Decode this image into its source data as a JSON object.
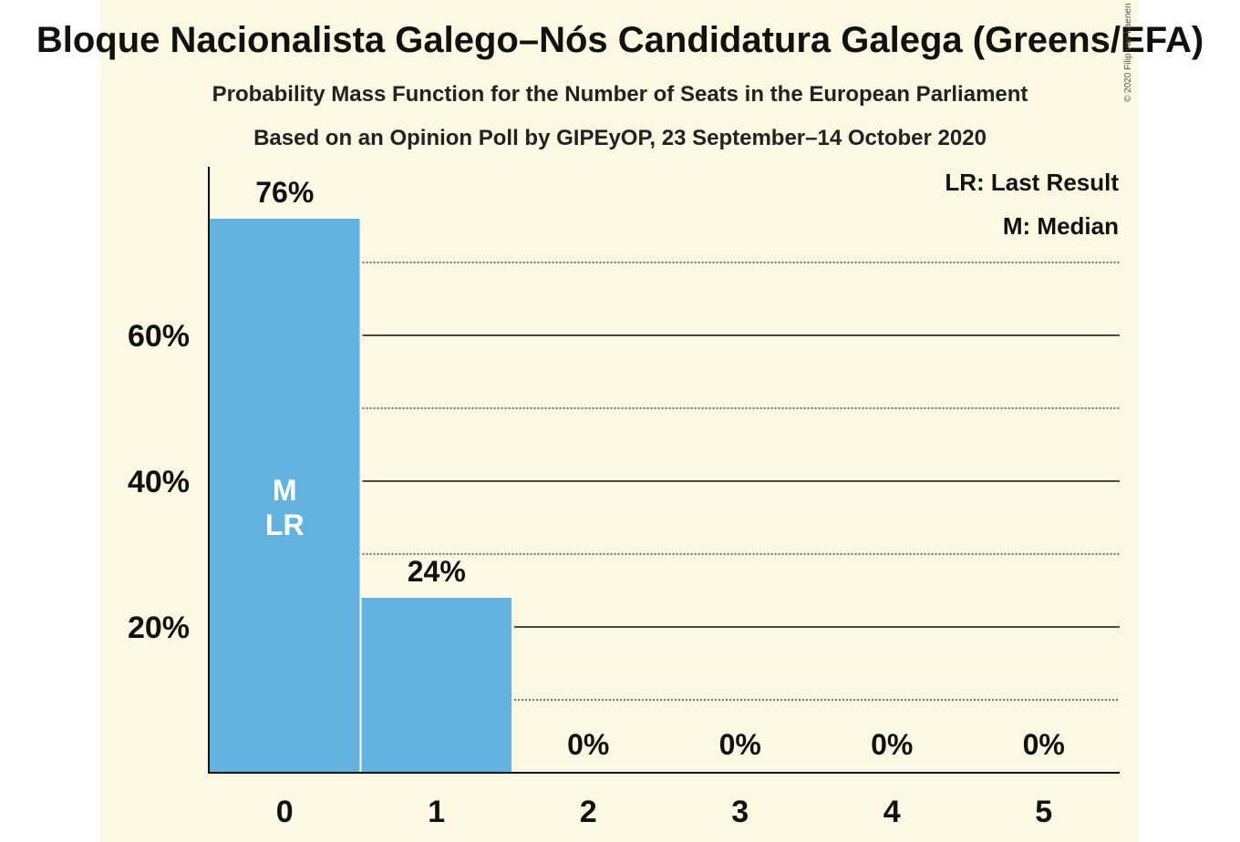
{
  "title": "Bloque Nacionalista Galego–Nós Candidatura Galega (Greens/EFA)",
  "subtitle": "Probability Mass Function for the Number of Seats in the European Parliament",
  "subtitle2": "Based on an Opinion Poll by GIPEyOP, 23 September–14 October 2020",
  "copyright": "© 2020 Filip van Laenen",
  "legend": {
    "lr": "LR: Last Result",
    "m": "M: Median"
  },
  "colors": {
    "bar": "#62b4de",
    "background": "#fdf9e2"
  },
  "chart_data": {
    "type": "bar",
    "categories": [
      "0",
      "1",
      "2",
      "3",
      "4",
      "5"
    ],
    "values": [
      76,
      24,
      0,
      0,
      0,
      0
    ],
    "value_labels": [
      "76%",
      "24%",
      "0%",
      "0%",
      "0%",
      "0%"
    ],
    "ylim": [
      0,
      83
    ],
    "y_ticks": [
      20,
      40,
      60
    ],
    "y_tick_labels": [
      "20%",
      "40%",
      "60%"
    ],
    "minor_gridlines": [
      10,
      30,
      50,
      70
    ],
    "median_index": 0,
    "last_result_index": 0,
    "inside_labels": [
      "M",
      "LR"
    ],
    "legend_placement": "top-right"
  }
}
